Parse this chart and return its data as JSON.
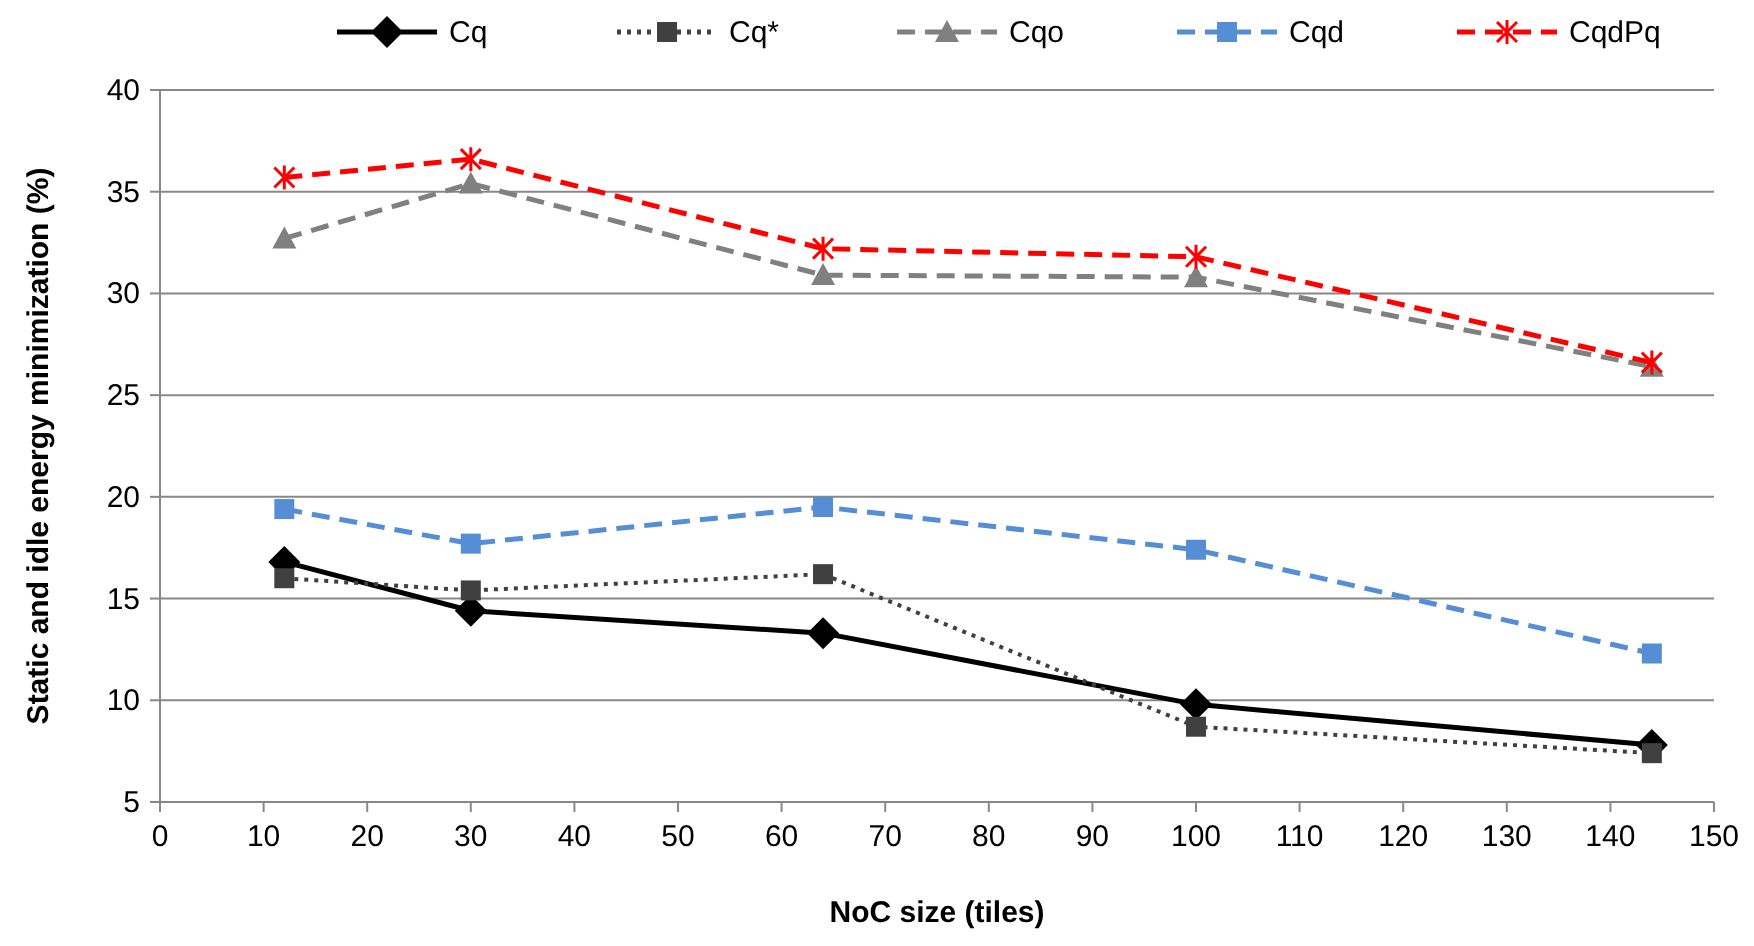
{
  "chart_data": {
    "type": "line",
    "xlabel": "NoC size (tiles)",
    "ylabel": "Static and idle energy minimization (%)",
    "x": [
      12,
      30,
      64,
      100,
      144
    ],
    "xlim": [
      0,
      150
    ],
    "xticks": [
      0,
      10,
      20,
      30,
      40,
      50,
      60,
      70,
      80,
      90,
      100,
      110,
      120,
      130,
      140,
      150
    ],
    "ylim": [
      5,
      40
    ],
    "yticks": [
      5,
      10,
      15,
      20,
      25,
      30,
      35,
      40
    ],
    "grid": "y",
    "legend": "top",
    "series": [
      {
        "name": "Cq",
        "color": "#000000",
        "marker": "diamond",
        "line_style": "solid",
        "values": [
          16.8,
          14.4,
          13.3,
          9.8,
          7.8
        ]
      },
      {
        "name": "Cq*",
        "color": "#404040",
        "marker": "square",
        "line_style": "dotted",
        "values": [
          16.0,
          15.4,
          16.2,
          8.7,
          7.4
        ]
      },
      {
        "name": "Cqo",
        "color": "#808080",
        "marker": "triangle",
        "line_style": "dashed",
        "values": [
          32.7,
          35.4,
          30.9,
          30.8,
          26.4
        ]
      },
      {
        "name": "Cqd",
        "color": "#558ed5",
        "marker": "square",
        "line_style": "dashed",
        "values": [
          19.4,
          17.7,
          19.5,
          17.4,
          12.3
        ]
      },
      {
        "name": "CqdPq",
        "color": "#ff0000",
        "marker": "cross",
        "line_style": "dashed",
        "values": [
          35.7,
          36.6,
          32.2,
          31.8,
          26.6
        ]
      }
    ]
  }
}
